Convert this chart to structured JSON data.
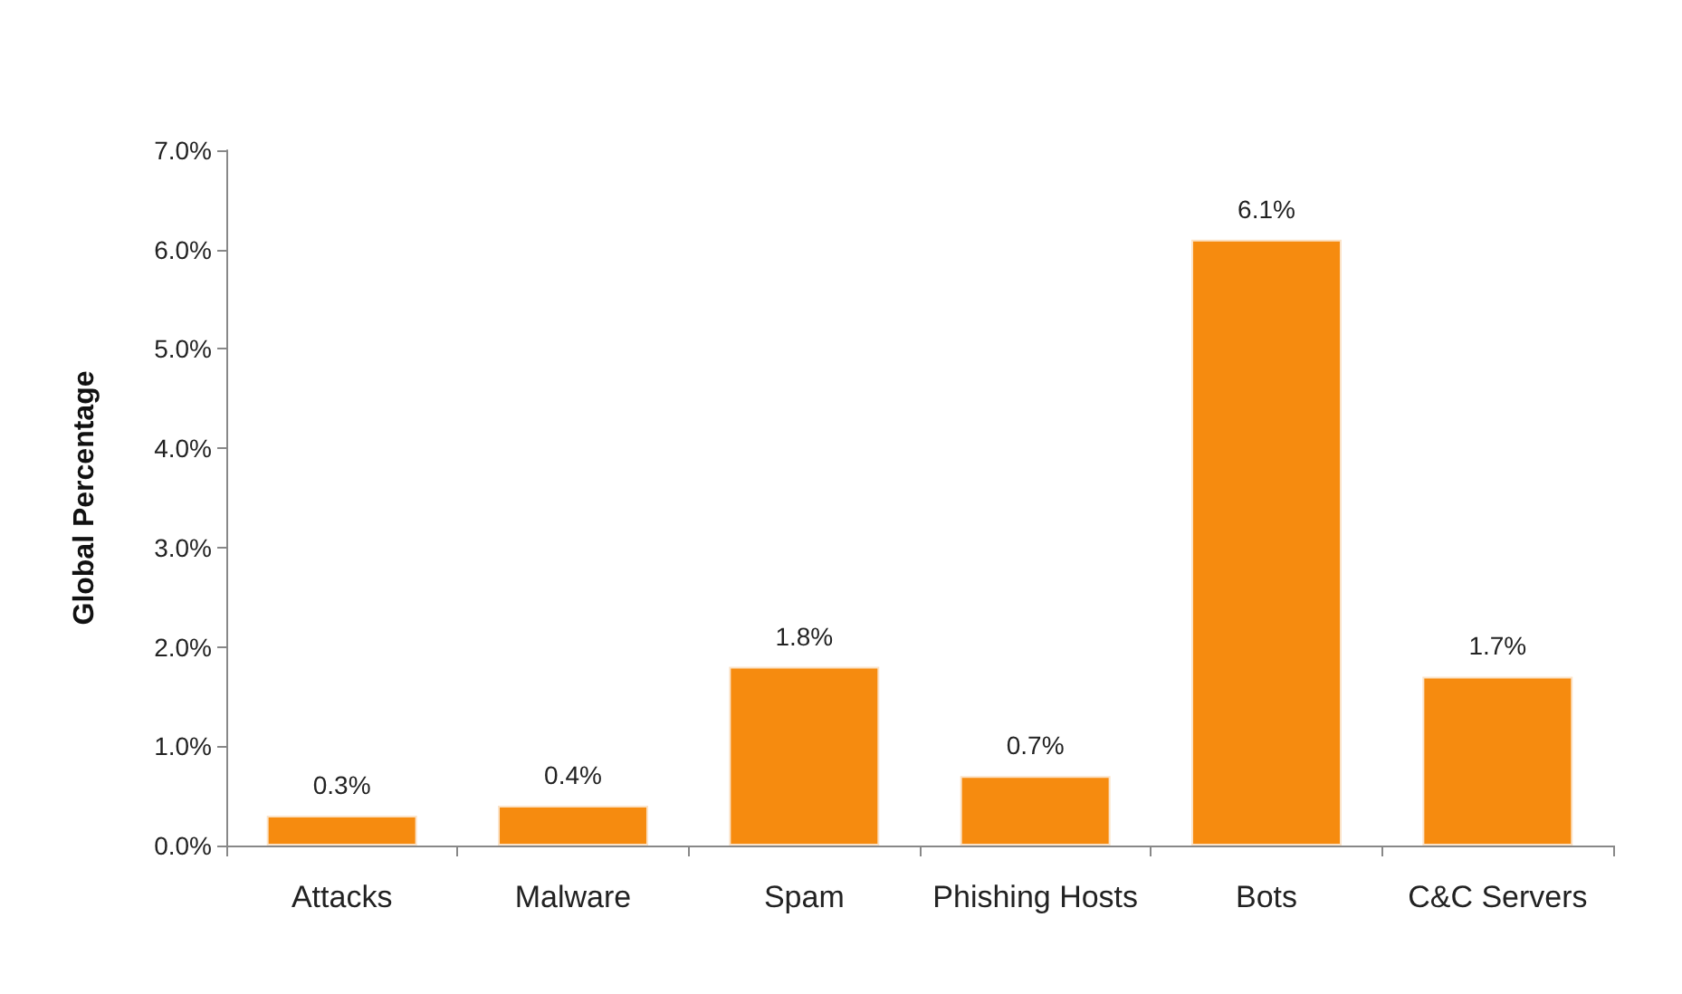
{
  "chart_data": {
    "type": "bar",
    "ylabel": "Global Percentage",
    "categories": [
      "Attacks",
      "Malware",
      "Spam",
      "Phishing Hosts",
      "Bots",
      "C&C Servers"
    ],
    "values": [
      0.3,
      0.4,
      1.8,
      0.7,
      6.1,
      1.7
    ],
    "value_labels": [
      "0.3%",
      "0.4%",
      "1.8%",
      "0.7%",
      "6.1%",
      "1.7%"
    ],
    "color": "#f68b0f",
    "ylim": [
      0,
      7
    ],
    "yticks": [
      {
        "value": 0,
        "label": "0.0%"
      },
      {
        "value": 1,
        "label": "1.0%"
      },
      {
        "value": 2,
        "label": "2.0%"
      },
      {
        "value": 3,
        "label": "3.0%"
      },
      {
        "value": 4,
        "label": "4.0%"
      },
      {
        "value": 5,
        "label": "5.0%"
      },
      {
        "value": 6,
        "label": "6.0%"
      },
      {
        "value": 7,
        "label": "7.0%"
      }
    ],
    "grid": false
  }
}
